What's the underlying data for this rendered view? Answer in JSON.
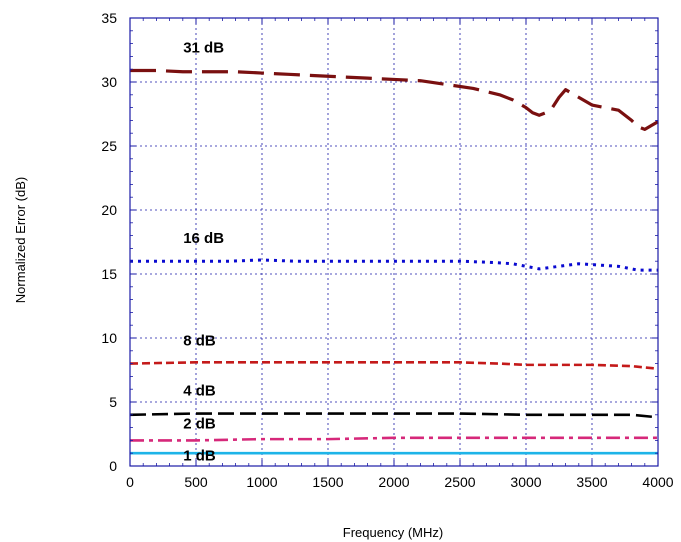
{
  "chart_data": {
    "type": "line",
    "title": "",
    "xlabel": "Frequency (MHz)",
    "ylabel": "Normalized Error (dB)",
    "xlim": [
      0,
      4000
    ],
    "ylim": [
      0,
      35
    ],
    "xticks": [
      0,
      500,
      1000,
      1500,
      2000,
      2500,
      3000,
      3500,
      4000
    ],
    "yticks": [
      0,
      5,
      10,
      15,
      20,
      25,
      30,
      35
    ],
    "grid": true,
    "legend": "none",
    "colors": {
      "frame": "#1a1aa6",
      "grid": "#1a1aa6"
    },
    "series": [
      {
        "name": "31 dB",
        "color": "#7a1010",
        "dash": "long-dash",
        "x": [
          0,
          200,
          400,
          600,
          800,
          1000,
          1200,
          1400,
          1600,
          1800,
          2000,
          2200,
          2400,
          2600,
          2800,
          2900,
          3000,
          3050,
          3100,
          3150,
          3200,
          3250,
          3300,
          3400,
          3500,
          3600,
          3700,
          3800,
          3850,
          3900,
          3950,
          4000
        ],
        "values": [
          30.9,
          30.9,
          30.8,
          30.8,
          30.8,
          30.7,
          30.6,
          30.5,
          30.4,
          30.3,
          30.2,
          30.1,
          29.8,
          29.5,
          29.0,
          28.6,
          28.0,
          27.6,
          27.4,
          27.6,
          28.0,
          28.8,
          29.4,
          28.8,
          28.2,
          28.0,
          27.8,
          27.0,
          26.5,
          26.3,
          26.6,
          26.9
        ]
      },
      {
        "name": "16 dB",
        "color": "#0a0ad0",
        "dash": "dot",
        "x": [
          0,
          250,
          500,
          750,
          1000,
          1250,
          1500,
          1750,
          2000,
          2250,
          2500,
          2750,
          2900,
          3000,
          3100,
          3250,
          3400,
          3550,
          3700,
          3850,
          4000
        ],
        "values": [
          16.0,
          16.0,
          16.0,
          16.0,
          16.1,
          16.0,
          16.0,
          16.0,
          16.0,
          16.0,
          16.0,
          15.9,
          15.8,
          15.6,
          15.4,
          15.6,
          15.8,
          15.7,
          15.6,
          15.3,
          15.3
        ]
      },
      {
        "name": "8 dB",
        "color": "#c41a1a",
        "dash": "short-dash",
        "x": [
          0,
          500,
          1000,
          1500,
          2000,
          2500,
          2800,
          3000,
          3200,
          3500,
          3800,
          4000
        ],
        "values": [
          8.0,
          8.1,
          8.1,
          8.1,
          8.1,
          8.1,
          8.0,
          7.9,
          7.9,
          7.9,
          7.8,
          7.6
        ]
      },
      {
        "name": "4 dB",
        "color": "#000000",
        "dash": "dash",
        "x": [
          0,
          500,
          1000,
          1500,
          2000,
          2500,
          3000,
          3500,
          3800,
          4000
        ],
        "values": [
          4.0,
          4.1,
          4.1,
          4.1,
          4.1,
          4.1,
          4.0,
          4.0,
          4.0,
          3.8
        ]
      },
      {
        "name": "2 dB",
        "color": "#d6287a",
        "dash": "dash-dot",
        "x": [
          0,
          500,
          1000,
          1500,
          2000,
          2500,
          3000,
          3500,
          4000
        ],
        "values": [
          2.0,
          2.0,
          2.1,
          2.1,
          2.2,
          2.2,
          2.2,
          2.2,
          2.2
        ]
      },
      {
        "name": "1 dB",
        "color": "#1eb4e8",
        "dash": "solid",
        "x": [
          0,
          1000,
          2000,
          3000,
          4000
        ],
        "values": [
          1.0,
          1.0,
          1.0,
          1.0,
          1.0
        ]
      }
    ],
    "annotations": [
      {
        "text": "31 dB",
        "x": 100,
        "y": 32.0
      },
      {
        "text": "16 dB",
        "x": 100,
        "y": 17.1
      },
      {
        "text": "8 dB",
        "x": 100,
        "y": 9.1
      },
      {
        "text": "4 dB",
        "x": 100,
        "y": 5.2
      },
      {
        "text": "2 dB",
        "x": 100,
        "y": 2.6
      },
      {
        "text": "1 dB",
        "x": 100,
        "y": 0.1
      }
    ]
  }
}
